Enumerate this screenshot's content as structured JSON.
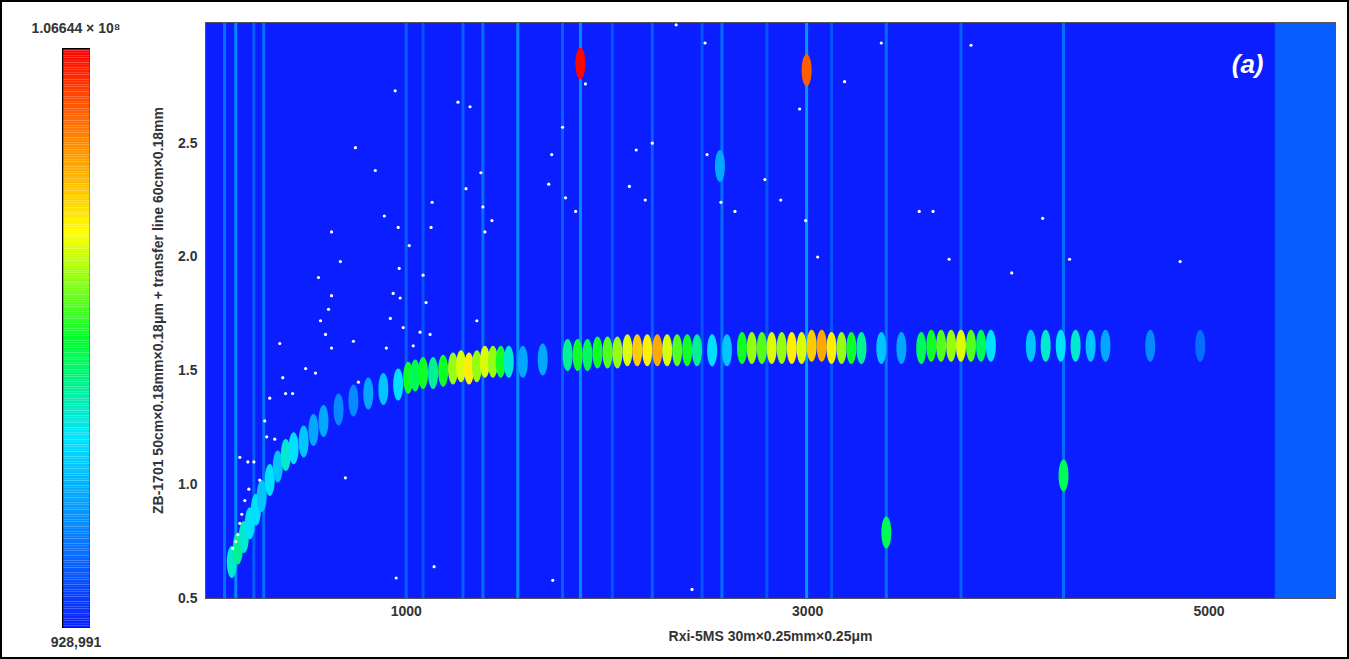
{
  "chart_data": {
    "type": "heatmap",
    "xlabel": "Rxi-5MS 30m×0.25mm×0.25μm",
    "ylabel": "ZB-1701 50cm×0.18mm×0.18μm + transfer line 60cm×0.18mm",
    "annotations": [
      "(a)"
    ],
    "xlim": [
      0,
      5630
    ],
    "xticks": [
      1000,
      3000,
      5000
    ],
    "ylim": [
      0.5,
      3.03
    ],
    "yticks": [
      0.5,
      {
        "value": 1,
        "label": "1.0"
      },
      1.5,
      {
        "value": 2,
        "label": "2.0"
      },
      2.5
    ],
    "colorbar": {
      "range": [
        928991,
        106644000
      ],
      "ticks": [
        {
          "value": 928991,
          "label": "928,991"
        },
        {
          "value": 106644000,
          "label": "1.06644 × 10⁸"
        }
      ]
    },
    "peaks": [
      [
        131,
        0.66,
        40000000
      ],
      [
        161,
        0.72,
        45000000
      ],
      [
        191,
        0.77,
        40000000
      ],
      [
        221,
        0.83,
        35000000
      ],
      [
        251,
        0.89,
        35000000
      ],
      [
        280,
        0.95,
        30000000
      ],
      [
        320,
        1.02,
        35000000
      ],
      [
        360,
        1.08,
        30000000
      ],
      [
        400,
        1.13,
        40000000
      ],
      [
        439,
        1.16,
        35000000
      ],
      [
        489,
        1.19,
        30000000
      ],
      [
        538,
        1.24,
        25000000
      ],
      [
        588,
        1.28,
        25000000
      ],
      [
        663,
        1.33,
        20000000
      ],
      [
        737,
        1.37,
        20000000
      ],
      [
        811,
        1.4,
        25000000
      ],
      [
        886,
        1.42,
        30000000
      ],
      [
        960,
        1.44,
        35000000
      ],
      [
        1010,
        1.47,
        55000000
      ],
      [
        1045,
        1.48,
        50000000
      ],
      [
        1084,
        1.49,
        55000000
      ],
      [
        1134,
        1.49,
        45000000
      ],
      [
        1184,
        1.5,
        55000000
      ],
      [
        1233,
        1.51,
        65000000
      ],
      [
        1273,
        1.52,
        70000000
      ],
      [
        1313,
        1.51,
        75000000
      ],
      [
        1352,
        1.52,
        65000000
      ],
      [
        1392,
        1.54,
        70000000
      ],
      [
        1432,
        1.54,
        65000000
      ],
      [
        1471,
        1.54,
        55000000
      ],
      [
        1511,
        1.54,
        40000000
      ],
      [
        1581,
        1.54,
        25000000
      ],
      [
        1680,
        1.55,
        25000000
      ],
      [
        1804,
        1.57,
        45000000
      ],
      [
        1854,
        1.57,
        55000000
      ],
      [
        1903,
        1.57,
        50000000
      ],
      [
        1953,
        1.58,
        55000000
      ],
      [
        2003,
        1.58,
        60000000
      ],
      [
        2052,
        1.58,
        65000000
      ],
      [
        2102,
        1.59,
        70000000
      ],
      [
        2151,
        1.59,
        80000000
      ],
      [
        2201,
        1.59,
        75000000
      ],
      [
        2251,
        1.59,
        85000000
      ],
      [
        2300,
        1.59,
        70000000
      ],
      [
        2350,
        1.59,
        60000000
      ],
      [
        2400,
        1.59,
        55000000
      ],
      [
        2449,
        1.59,
        45000000
      ],
      [
        2524,
        1.59,
        35000000
      ],
      [
        2598,
        1.59,
        30000000
      ],
      [
        2673,
        1.6,
        55000000
      ],
      [
        2722,
        1.6,
        65000000
      ],
      [
        2772,
        1.6,
        60000000
      ],
      [
        2821,
        1.6,
        70000000
      ],
      [
        2871,
        1.6,
        65000000
      ],
      [
        2921,
        1.6,
        75000000
      ],
      [
        2970,
        1.6,
        70000000
      ],
      [
        3020,
        1.61,
        80000000
      ],
      [
        3070,
        1.61,
        85000000
      ],
      [
        3119,
        1.6,
        75000000
      ],
      [
        3169,
        1.6,
        65000000
      ],
      [
        3218,
        1.6,
        55000000
      ],
      [
        3268,
        1.6,
        45000000
      ],
      [
        3367,
        1.6,
        30000000
      ],
      [
        3467,
        1.6,
        25000000
      ],
      [
        3566,
        1.6,
        50000000
      ],
      [
        3616,
        1.61,
        55000000
      ],
      [
        3665,
        1.61,
        60000000
      ],
      [
        3715,
        1.61,
        65000000
      ],
      [
        3764,
        1.61,
        70000000
      ],
      [
        3814,
        1.61,
        60000000
      ],
      [
        3864,
        1.61,
        50000000
      ],
      [
        3913,
        1.61,
        35000000
      ],
      [
        4112,
        1.61,
        30000000
      ],
      [
        4186,
        1.61,
        40000000
      ],
      [
        4261,
        1.61,
        35000000
      ],
      [
        4335,
        1.61,
        40000000
      ],
      [
        4410,
        1.61,
        30000000
      ],
      [
        4484,
        1.61,
        25000000
      ],
      [
        4707,
        1.61,
        20000000
      ],
      [
        4956,
        1.61,
        15000000
      ],
      [
        1868,
        2.85,
        106000000
      ],
      [
        2995,
        2.82,
        95000000
      ],
      [
        3392,
        0.79,
        50000000
      ],
      [
        4275,
        1.04,
        50000000
      ],
      [
        2563,
        2.4,
        25000000
      ]
    ],
    "streaks": [
      [
        95,
        15000000
      ],
      [
        151,
        20000000
      ],
      [
        241,
        12000000
      ],
      [
        290,
        15000000
      ],
      [
        1000,
        12000000
      ],
      [
        1084,
        10000000
      ],
      [
        1283,
        12000000
      ],
      [
        1382,
        15000000
      ],
      [
        1556,
        20000000
      ],
      [
        1779,
        12000000
      ],
      [
        1868,
        20000000
      ],
      [
        2027,
        10000000
      ],
      [
        2226,
        12000000
      ],
      [
        2474,
        10000000
      ],
      [
        2573,
        15000000
      ],
      [
        2797,
        10000000
      ],
      [
        2995,
        22000000
      ],
      [
        3119,
        10000000
      ],
      [
        3392,
        15000000
      ],
      [
        3764,
        12000000
      ],
      [
        4275,
        15000000
      ]
    ],
    "regions": [
      [
        5330,
        5630,
        12000000
      ]
    ],
    "markers": [
      [
        136,
        0.72
      ],
      [
        151,
        0.75
      ],
      [
        161,
        0.78
      ],
      [
        171,
        0.83
      ],
      [
        181,
        0.87
      ],
      [
        196,
        0.93
      ],
      [
        216,
        0.98
      ],
      [
        171,
        1.12
      ],
      [
        211,
        1.1
      ],
      [
        241,
        1.1
      ],
      [
        270,
        1.02
      ],
      [
        295,
        1.28
      ],
      [
        305,
        1.21
      ],
      [
        320,
        1.38
      ],
      [
        345,
        1.2
      ],
      [
        385,
        1.47
      ],
      [
        399,
        1.4
      ],
      [
        434,
        1.4
      ],
      [
        370,
        1.62
      ],
      [
        499,
        1.51
      ],
      [
        548,
        1.49
      ],
      [
        563,
        1.91
      ],
      [
        573,
        1.72
      ],
      [
        598,
        1.66
      ],
      [
        613,
        1.77
      ],
      [
        628,
        1.83
      ],
      [
        628,
        2.11
      ],
      [
        628,
        1.6
      ],
      [
        672,
        1.98
      ],
      [
        697,
        1.03
      ],
      [
        737,
        1.63
      ],
      [
        747,
        2.48
      ],
      [
        762,
        1.45
      ],
      [
        846,
        2.38
      ],
      [
        891,
        2.18
      ],
      [
        901,
        1.6
      ],
      [
        921,
        1.73
      ],
      [
        935,
        1.84
      ],
      [
        945,
        2.73
      ],
      [
        950,
        0.59
      ],
      [
        960,
        2.13
      ],
      [
        965,
        1.95
      ],
      [
        970,
        1.82
      ],
      [
        985,
        1.69
      ],
      [
        1015,
        2.05
      ],
      [
        1035,
        1.61
      ],
      [
        1069,
        1.67
      ],
      [
        1084,
        1.92
      ],
      [
        1099,
        1.8
      ],
      [
        1119,
        1.66
      ],
      [
        1124,
        2.13
      ],
      [
        1129,
        2.24
      ],
      [
        1139,
        0.64
      ],
      [
        1258,
        2.68
      ],
      [
        1298,
        2.3
      ],
      [
        1318,
        2.66
      ],
      [
        1352,
        1.72
      ],
      [
        1372,
        2.37
      ],
      [
        1382,
        2.22
      ],
      [
        1392,
        2.11
      ],
      [
        1427,
        2.16
      ],
      [
        1710,
        2.32
      ],
      [
        1725,
        2.45
      ],
      [
        1730,
        0.58
      ],
      [
        1779,
        2.57
      ],
      [
        1794,
        2.26
      ],
      [
        1844,
        2.2
      ],
      [
        1893,
        2.76
      ],
      [
        2112,
        2.31
      ],
      [
        2146,
        2.47
      ],
      [
        2191,
        2.25
      ],
      [
        2226,
        2.5
      ],
      [
        2345,
        3.02
      ],
      [
        2424,
        0.54
      ],
      [
        2489,
        2.94
      ],
      [
        2499,
        2.45
      ],
      [
        2568,
        2.24
      ],
      [
        2638,
        2.2
      ],
      [
        2787,
        2.34
      ],
      [
        2866,
        2.25
      ],
      [
        2960,
        2.65
      ],
      [
        2990,
        2.16
      ],
      [
        3050,
        2.0
      ],
      [
        3184,
        2.77
      ],
      [
        3367,
        2.94
      ],
      [
        3556,
        2.2
      ],
      [
        3625,
        2.2
      ],
      [
        3705,
        1.99
      ],
      [
        3814,
        2.93
      ],
      [
        4017,
        1.93
      ],
      [
        4171,
        2.17
      ],
      [
        4305,
        1.99
      ],
      [
        4856,
        1.98
      ]
    ]
  }
}
